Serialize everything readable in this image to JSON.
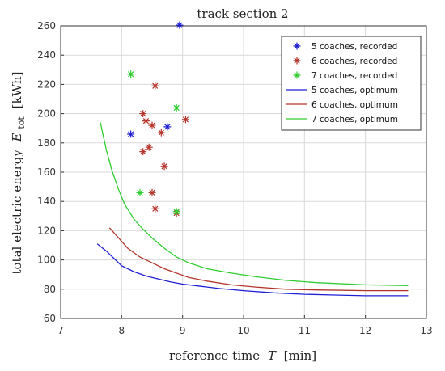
{
  "chart_data": {
    "type": "scatter",
    "title": "track section 2",
    "xlabel": "reference time",
    "xlabel_symbol": "T",
    "xlabel_unit": "[min]",
    "ylabel": "total electric energy",
    "ylabel_symbol": "E",
    "ylabel_subscript": "tot",
    "ylabel_unit": "[kWh]",
    "xlim": [
      7,
      13
    ],
    "ylim": [
      60,
      260
    ],
    "xticks": [
      7,
      8,
      9,
      10,
      11,
      12,
      13
    ],
    "yticks": [
      60,
      80,
      100,
      120,
      140,
      160,
      180,
      200,
      220,
      240,
      260
    ],
    "grid": true,
    "legend_position": "top-right",
    "series": [
      {
        "name": "5 coaches, recorded",
        "type": "scatter",
        "marker": "asterisk",
        "color": "#1f1fd6",
        "points": [
          [
            8.95,
            260.5
          ],
          [
            8.15,
            186
          ],
          [
            8.75,
            191
          ]
        ]
      },
      {
        "name": "6 coaches, recorded",
        "type": "scatter",
        "marker": "asterisk",
        "color": "#b5342a",
        "points": [
          [
            8.55,
            219
          ],
          [
            8.35,
            200
          ],
          [
            8.4,
            195
          ],
          [
            8.5,
            192
          ],
          [
            9.05,
            196
          ],
          [
            8.65,
            187
          ],
          [
            8.45,
            177
          ],
          [
            8.35,
            174
          ],
          [
            8.7,
            164
          ],
          [
            8.5,
            146
          ],
          [
            8.55,
            135
          ],
          [
            8.9,
            132
          ]
        ]
      },
      {
        "name": "7 coaches, recorded",
        "type": "scatter",
        "marker": "asterisk",
        "color": "#2ecc2e",
        "points": [
          [
            8.15,
            227
          ],
          [
            8.9,
            204
          ],
          [
            8.3,
            146
          ],
          [
            8.9,
            133
          ]
        ]
      },
      {
        "name": "5 coaches, optimum",
        "type": "line",
        "color": "#1f1fd6",
        "points": [
          [
            7.6,
            111
          ],
          [
            7.75,
            106
          ],
          [
            7.9,
            100
          ],
          [
            8.0,
            96
          ],
          [
            8.2,
            92
          ],
          [
            8.4,
            89
          ],
          [
            8.6,
            87
          ],
          [
            8.8,
            85
          ],
          [
            9.0,
            83.5
          ],
          [
            9.3,
            82
          ],
          [
            9.6,
            80.5
          ],
          [
            10.0,
            79
          ],
          [
            10.5,
            77.5
          ],
          [
            11.0,
            76.5
          ],
          [
            11.5,
            76
          ],
          [
            12.0,
            75.5
          ],
          [
            12.7,
            75.5
          ]
        ]
      },
      {
        "name": "6 coaches, optimum",
        "type": "line",
        "color": "#b5342a",
        "points": [
          [
            7.8,
            122
          ],
          [
            7.95,
            115
          ],
          [
            8.1,
            108
          ],
          [
            8.3,
            102
          ],
          [
            8.5,
            98
          ],
          [
            8.7,
            94
          ],
          [
            8.9,
            91
          ],
          [
            9.1,
            88
          ],
          [
            9.4,
            85.5
          ],
          [
            9.8,
            83
          ],
          [
            10.2,
            81.5
          ],
          [
            10.7,
            80
          ],
          [
            11.2,
            79.5
          ],
          [
            12.0,
            79
          ],
          [
            12.7,
            79
          ]
        ]
      },
      {
        "name": "7 coaches, optimum",
        "type": "line",
        "color": "#2ecc2e",
        "points": [
          [
            7.65,
            194
          ],
          [
            7.75,
            175
          ],
          [
            7.85,
            160
          ],
          [
            7.95,
            148
          ],
          [
            8.05,
            138
          ],
          [
            8.2,
            128
          ],
          [
            8.35,
            121
          ],
          [
            8.5,
            115
          ],
          [
            8.7,
            108
          ],
          [
            8.9,
            102
          ],
          [
            9.1,
            98
          ],
          [
            9.4,
            94
          ],
          [
            9.8,
            91
          ],
          [
            10.2,
            88.5
          ],
          [
            10.7,
            86
          ],
          [
            11.2,
            84.5
          ],
          [
            12.0,
            83
          ],
          [
            12.7,
            82.5
          ]
        ]
      }
    ]
  }
}
